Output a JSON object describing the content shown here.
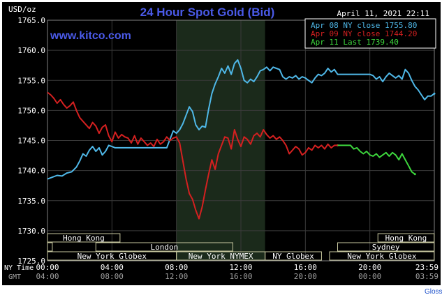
{
  "chart_data": {
    "type": "line",
    "title": "24 Hour Spot Gold (Bid)",
    "date_label": "April 11, 2021 22:11",
    "watermark": "www.kitco.com",
    "y_unit": "USD/oz",
    "ylim": [
      1725.0,
      1765.0
    ],
    "y_ticks": [
      "1765.0",
      "1760.0",
      "1755.0",
      "1750.0",
      "1745.0",
      "1740.0",
      "1735.0",
      "1730.0",
      "1725.0"
    ],
    "x_axis_rows": [
      {
        "label": "NY Time",
        "ticks": [
          "00:00",
          "04:00",
          "08:00",
          "12:00",
          "16:00",
          "20:00",
          "23:59"
        ]
      },
      {
        "label": "GMT",
        "ticks": [
          "04:00",
          "08:00",
          "12:00",
          "16:00",
          "20:00",
          "00:00",
          "03:59"
        ]
      }
    ],
    "xlim_hours": [
      0,
      24
    ],
    "grid": true,
    "legend_position": "top-right",
    "series": [
      {
        "name": "Apr 08 NY close 1755.80",
        "color": "#4fb8e8",
        "points": [
          [
            0,
            1738.6
          ],
          [
            0.3,
            1738.9
          ],
          [
            0.6,
            1739.2
          ],
          [
            0.9,
            1739.1
          ],
          [
            1.2,
            1739.6
          ],
          [
            1.5,
            1739.8
          ],
          [
            1.8,
            1740.6
          ],
          [
            2.0,
            1741.6
          ],
          [
            2.2,
            1742.8
          ],
          [
            2.4,
            1742.4
          ],
          [
            2.6,
            1743.4
          ],
          [
            2.8,
            1744.0
          ],
          [
            3.0,
            1743.2
          ],
          [
            3.2,
            1743.8
          ],
          [
            3.4,
            1742.6
          ],
          [
            3.6,
            1743.2
          ],
          [
            3.8,
            1744.2
          ],
          [
            4.0,
            1744.0
          ],
          [
            4.2,
            1743.8
          ],
          [
            4.6,
            1743.8
          ],
          [
            5.0,
            1743.8
          ],
          [
            5.5,
            1743.8
          ],
          [
            6.0,
            1743.8
          ],
          [
            6.5,
            1743.8
          ],
          [
            7.0,
            1743.8
          ],
          [
            7.4,
            1743.8
          ],
          [
            7.6,
            1745.2
          ],
          [
            7.8,
            1746.6
          ],
          [
            8.0,
            1746.2
          ],
          [
            8.2,
            1746.8
          ],
          [
            8.4,
            1747.8
          ],
          [
            8.6,
            1749.2
          ],
          [
            8.8,
            1750.6
          ],
          [
            9.0,
            1749.8
          ],
          [
            9.2,
            1747.6
          ],
          [
            9.4,
            1746.8
          ],
          [
            9.6,
            1747.4
          ],
          [
            9.8,
            1747.2
          ],
          [
            10.0,
            1750.2
          ],
          [
            10.2,
            1752.8
          ],
          [
            10.4,
            1754.4
          ],
          [
            10.6,
            1755.6
          ],
          [
            10.8,
            1757.0
          ],
          [
            11.0,
            1756.2
          ],
          [
            11.2,
            1757.4
          ],
          [
            11.4,
            1756.0
          ],
          [
            11.6,
            1757.8
          ],
          [
            11.8,
            1758.4
          ],
          [
            12.0,
            1757.0
          ],
          [
            12.2,
            1755.0
          ],
          [
            12.4,
            1754.6
          ],
          [
            12.6,
            1755.2
          ],
          [
            12.8,
            1754.8
          ],
          [
            13.0,
            1755.6
          ],
          [
            13.2,
            1756.6
          ],
          [
            13.4,
            1756.8
          ],
          [
            13.6,
            1757.2
          ],
          [
            13.8,
            1756.6
          ],
          [
            14.0,
            1757.2
          ],
          [
            14.2,
            1757.0
          ],
          [
            14.4,
            1756.8
          ],
          [
            14.6,
            1755.6
          ],
          [
            14.8,
            1755.2
          ],
          [
            15.0,
            1755.6
          ],
          [
            15.2,
            1755.4
          ],
          [
            15.4,
            1755.8
          ],
          [
            15.6,
            1755.2
          ],
          [
            15.8,
            1755.6
          ],
          [
            16.0,
            1755.4
          ],
          [
            16.2,
            1755.0
          ],
          [
            16.4,
            1754.6
          ],
          [
            16.6,
            1755.4
          ],
          [
            16.8,
            1756.0
          ],
          [
            17.0,
            1755.8
          ],
          [
            17.2,
            1756.2
          ],
          [
            17.4,
            1757.0
          ],
          [
            17.6,
            1756.4
          ],
          [
            17.8,
            1756.8
          ],
          [
            18.0,
            1756.0
          ],
          [
            18.5,
            1756.0
          ],
          [
            19.0,
            1756.0
          ],
          [
            19.5,
            1756.0
          ],
          [
            20.0,
            1756.0
          ],
          [
            20.2,
            1755.8
          ],
          [
            20.4,
            1755.2
          ],
          [
            20.6,
            1755.6
          ],
          [
            20.8,
            1754.8
          ],
          [
            21.0,
            1755.6
          ],
          [
            21.2,
            1756.2
          ],
          [
            21.4,
            1755.8
          ],
          [
            21.6,
            1755.4
          ],
          [
            21.8,
            1755.8
          ],
          [
            22.0,
            1755.2
          ],
          [
            22.2,
            1756.8
          ],
          [
            22.4,
            1756.2
          ],
          [
            22.6,
            1755.0
          ],
          [
            22.8,
            1754.0
          ],
          [
            23.0,
            1753.4
          ],
          [
            23.2,
            1752.6
          ],
          [
            23.4,
            1751.8
          ],
          [
            23.6,
            1752.4
          ],
          [
            23.8,
            1752.4
          ],
          [
            24.0,
            1752.8
          ]
        ]
      },
      {
        "name": "Apr 09 NY close 1744.20",
        "color": "#d42020",
        "points": [
          [
            0,
            1753.0
          ],
          [
            0.2,
            1752.6
          ],
          [
            0.4,
            1752.0
          ],
          [
            0.6,
            1751.2
          ],
          [
            0.8,
            1751.8
          ],
          [
            1.0,
            1751.0
          ],
          [
            1.2,
            1750.4
          ],
          [
            1.4,
            1750.8
          ],
          [
            1.6,
            1751.4
          ],
          [
            1.8,
            1750.0
          ],
          [
            2.0,
            1748.8
          ],
          [
            2.2,
            1748.2
          ],
          [
            2.4,
            1747.6
          ],
          [
            2.6,
            1747.0
          ],
          [
            2.8,
            1748.0
          ],
          [
            3.0,
            1747.4
          ],
          [
            3.2,
            1746.2
          ],
          [
            3.4,
            1747.2
          ],
          [
            3.6,
            1747.6
          ],
          [
            3.8,
            1745.8
          ],
          [
            4.0,
            1744.8
          ],
          [
            4.2,
            1746.4
          ],
          [
            4.4,
            1745.4
          ],
          [
            4.6,
            1746.0
          ],
          [
            4.8,
            1745.6
          ],
          [
            5.0,
            1745.4
          ],
          [
            5.2,
            1744.6
          ],
          [
            5.4,
            1745.8
          ],
          [
            5.6,
            1744.4
          ],
          [
            5.8,
            1745.4
          ],
          [
            6.0,
            1744.8
          ],
          [
            6.2,
            1744.2
          ],
          [
            6.4,
            1744.6
          ],
          [
            6.6,
            1744.0
          ],
          [
            6.8,
            1745.2
          ],
          [
            7.0,
            1744.4
          ],
          [
            7.2,
            1744.8
          ],
          [
            7.4,
            1745.6
          ],
          [
            7.6,
            1745.0
          ],
          [
            7.8,
            1745.4
          ],
          [
            8.0,
            1745.6
          ],
          [
            8.2,
            1744.6
          ],
          [
            8.4,
            1741.6
          ],
          [
            8.6,
            1738.6
          ],
          [
            8.8,
            1736.2
          ],
          [
            9.0,
            1735.2
          ],
          [
            9.2,
            1733.4
          ],
          [
            9.4,
            1732.0
          ],
          [
            9.6,
            1734.0
          ],
          [
            9.8,
            1736.8
          ],
          [
            10.0,
            1739.4
          ],
          [
            10.2,
            1741.8
          ],
          [
            10.4,
            1740.2
          ],
          [
            10.6,
            1742.8
          ],
          [
            10.8,
            1744.2
          ],
          [
            11.0,
            1745.6
          ],
          [
            11.2,
            1745.4
          ],
          [
            11.4,
            1743.6
          ],
          [
            11.6,
            1746.8
          ],
          [
            11.8,
            1745.2
          ],
          [
            12.0,
            1744.0
          ],
          [
            12.2,
            1745.6
          ],
          [
            12.4,
            1745.2
          ],
          [
            12.6,
            1744.4
          ],
          [
            12.8,
            1745.8
          ],
          [
            13.0,
            1746.2
          ],
          [
            13.2,
            1745.6
          ],
          [
            13.4,
            1746.8
          ],
          [
            13.6,
            1746.0
          ],
          [
            13.8,
            1745.4
          ],
          [
            14.0,
            1745.8
          ],
          [
            14.2,
            1745.2
          ],
          [
            14.4,
            1745.6
          ],
          [
            14.6,
            1745.0
          ],
          [
            14.8,
            1744.2
          ],
          [
            15.0,
            1742.8
          ],
          [
            15.2,
            1743.4
          ],
          [
            15.4,
            1744.0
          ],
          [
            15.6,
            1743.6
          ],
          [
            15.8,
            1742.6
          ],
          [
            16.0,
            1743.0
          ],
          [
            16.2,
            1743.8
          ],
          [
            16.4,
            1743.4
          ],
          [
            16.6,
            1744.2
          ],
          [
            16.8,
            1743.8
          ],
          [
            17.0,
            1744.2
          ],
          [
            17.2,
            1743.6
          ],
          [
            17.4,
            1744.4
          ],
          [
            17.6,
            1743.8
          ],
          [
            17.8,
            1744.2
          ],
          [
            18.0,
            1744.2
          ]
        ]
      },
      {
        "name": "Apr 11 Last 1739.40",
        "color": "#3dd63d",
        "points": [
          [
            18.0,
            1744.2
          ],
          [
            18.4,
            1744.2
          ],
          [
            18.8,
            1744.2
          ],
          [
            19.0,
            1743.6
          ],
          [
            19.2,
            1743.8
          ],
          [
            19.4,
            1743.2
          ],
          [
            19.6,
            1742.8
          ],
          [
            19.8,
            1743.2
          ],
          [
            20.0,
            1742.6
          ],
          [
            20.2,
            1742.4
          ],
          [
            20.4,
            1742.8
          ],
          [
            20.6,
            1742.2
          ],
          [
            20.8,
            1742.6
          ],
          [
            21.0,
            1743.0
          ],
          [
            21.2,
            1742.4
          ],
          [
            21.4,
            1743.0
          ],
          [
            21.6,
            1742.6
          ],
          [
            21.8,
            1741.8
          ],
          [
            22.0,
            1742.8
          ],
          [
            22.2,
            1741.8
          ],
          [
            22.4,
            1740.8
          ],
          [
            22.6,
            1739.8
          ],
          [
            22.8,
            1739.4
          ]
        ]
      }
    ],
    "session_rows": [
      {
        "sessions": [
          {
            "label": "Hong Kong",
            "start": 0,
            "end": 4.5
          },
          {
            "label": "Hong Kong",
            "start": 20.5,
            "end": 23.99
          }
        ]
      },
      {
        "sessions": [
          {
            "label": "",
            "start": 0,
            "end": 0.3
          },
          {
            "label": "London",
            "start": 3.0,
            "end": 11.5
          },
          {
            "label": "Sydney",
            "start": 18.0,
            "end": 23.99
          }
        ]
      },
      {
        "sessions": [
          {
            "label": "New York Globex",
            "start": 0,
            "end": 8.0
          },
          {
            "label": "New York NYMEX",
            "start": 8.0,
            "end": 13.5
          },
          {
            "label": "NY Globex",
            "start": 13.5,
            "end": 17.0
          },
          {
            "label": "New York Globex",
            "start": 17.5,
            "end": 23.99
          }
        ]
      }
    ],
    "highlight_range_hours": [
      8.0,
      13.5
    ]
  },
  "footer": {
    "link": "Glossary"
  }
}
